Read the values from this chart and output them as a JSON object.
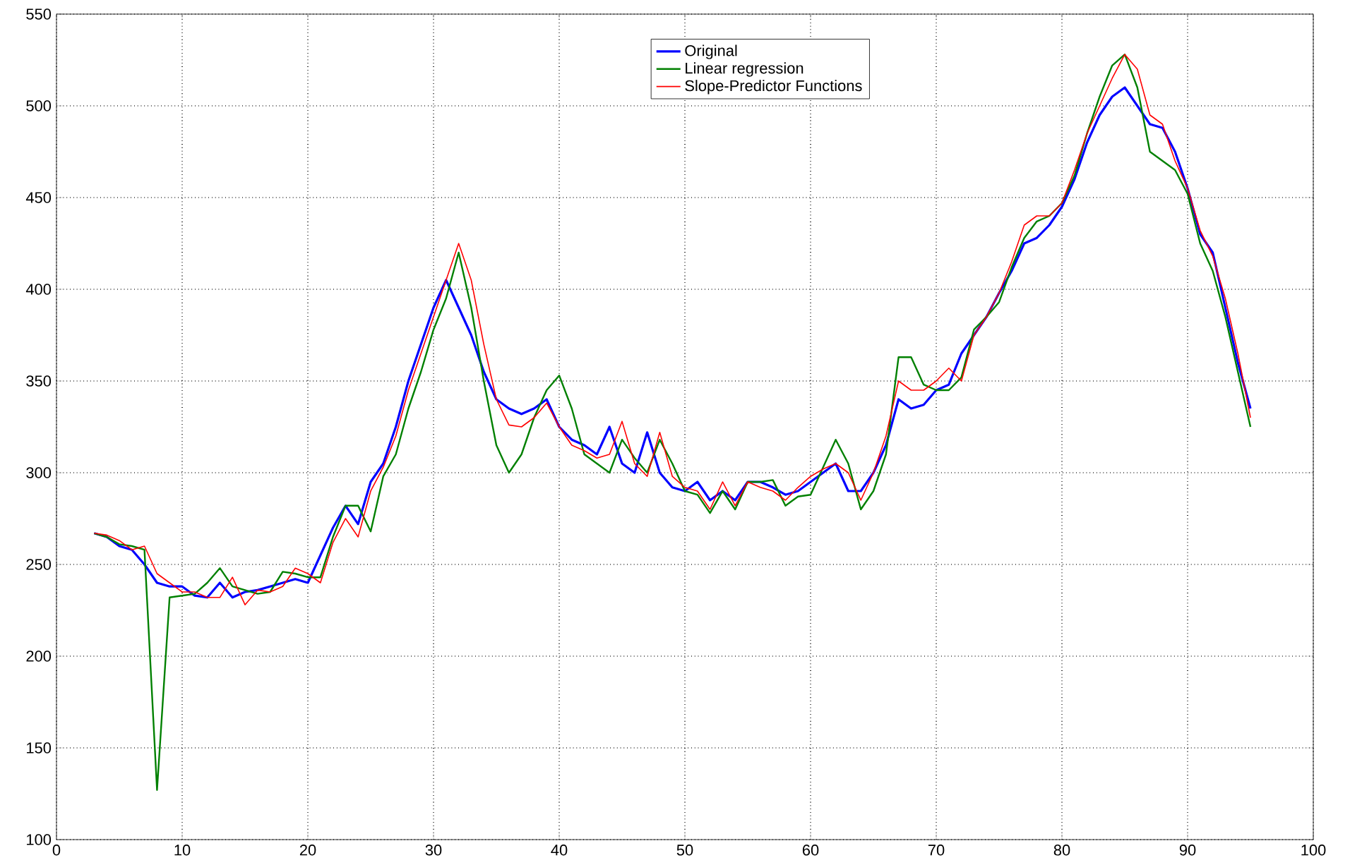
{
  "chart_data": {
    "type": "line",
    "x": [
      3,
      4,
      5,
      6,
      7,
      8,
      9,
      10,
      11,
      12,
      13,
      14,
      15,
      16,
      17,
      18,
      19,
      20,
      21,
      22,
      23,
      24,
      25,
      26,
      27,
      28,
      29,
      30,
      31,
      32,
      33,
      34,
      35,
      36,
      37,
      38,
      39,
      40,
      41,
      42,
      43,
      44,
      45,
      46,
      47,
      48,
      49,
      50,
      51,
      52,
      53,
      54,
      55,
      56,
      57,
      58,
      59,
      60,
      61,
      62,
      63,
      64,
      65,
      66,
      67,
      68,
      69,
      70,
      71,
      72,
      73,
      74,
      75,
      76,
      77,
      78,
      79,
      80,
      81,
      82,
      83,
      84,
      85,
      86,
      87,
      88,
      89,
      90,
      91,
      92,
      93,
      94,
      95
    ],
    "series": [
      {
        "name": "Original",
        "color": "#0000ff",
        "values": [
          267,
          265,
          260,
          258,
          250,
          240,
          238,
          238,
          233,
          232,
          240,
          232,
          235,
          236,
          238,
          240,
          242,
          240,
          255,
          270,
          282,
          272,
          295,
          305,
          325,
          350,
          370,
          390,
          405,
          390,
          375,
          355,
          340,
          335,
          332,
          335,
          340,
          325,
          318,
          315,
          310,
          325,
          305,
          300,
          322,
          300,
          292,
          290,
          295,
          285,
          290,
          285,
          295,
          295,
          292,
          288,
          290,
          295,
          300,
          305,
          290,
          290,
          300,
          315,
          340,
          335,
          337,
          345,
          348,
          365,
          375,
          385,
          398,
          410,
          425,
          428,
          435,
          445,
          460,
          480,
          495,
          505,
          510,
          500,
          490,
          488,
          475,
          455,
          430,
          420,
          390,
          360,
          335
        ]
      },
      {
        "name": "Linear regression",
        "color": "#008000",
        "values": [
          267,
          265,
          261,
          260,
          258,
          127,
          232,
          233,
          234,
          240,
          248,
          238,
          236,
          234,
          235,
          246,
          245,
          243,
          243,
          265,
          282,
          282,
          268,
          298,
          310,
          335,
          355,
          378,
          395,
          420,
          390,
          350,
          315,
          300,
          310,
          330,
          345,
          353,
          335,
          310,
          305,
          300,
          318,
          308,
          300,
          318,
          305,
          290,
          288,
          278,
          290,
          280,
          295,
          295,
          296,
          282,
          287,
          288,
          303,
          318,
          305,
          280,
          290,
          310,
          363,
          363,
          348,
          345,
          345,
          352,
          378,
          385,
          393,
          412,
          428,
          437,
          440,
          447,
          462,
          485,
          505,
          522,
          528,
          510,
          475,
          470,
          465,
          452,
          425,
          410,
          385,
          355,
          325
        ]
      },
      {
        "name": "Slope-Predictor Functions",
        "color": "#ff0000",
        "values": [
          267,
          266,
          263,
          258,
          260,
          245,
          240,
          235,
          235,
          232,
          232,
          243,
          228,
          236,
          235,
          238,
          248,
          245,
          240,
          262,
          275,
          265,
          290,
          303,
          320,
          345,
          365,
          385,
          405,
          425,
          405,
          370,
          340,
          326,
          325,
          330,
          338,
          325,
          315,
          312,
          308,
          310,
          328,
          305,
          298,
          322,
          298,
          292,
          290,
          280,
          295,
          282,
          295,
          292,
          290,
          285,
          292,
          298,
          302,
          305,
          300,
          285,
          300,
          320,
          350,
          345,
          345,
          350,
          357,
          350,
          375,
          385,
          398,
          415,
          435,
          440,
          440,
          447,
          465,
          485,
          500,
          515,
          528,
          520,
          495,
          490,
          470,
          455,
          432,
          418,
          395,
          365,
          330
        ]
      }
    ],
    "xlim": [
      0,
      100
    ],
    "ylim": [
      100,
      550
    ],
    "xticks": [
      0,
      10,
      20,
      30,
      40,
      50,
      60,
      70,
      80,
      90,
      100
    ],
    "yticks": [
      100,
      150,
      200,
      250,
      300,
      350,
      400,
      450,
      500,
      550
    ],
    "grid": true,
    "legend": "top"
  }
}
